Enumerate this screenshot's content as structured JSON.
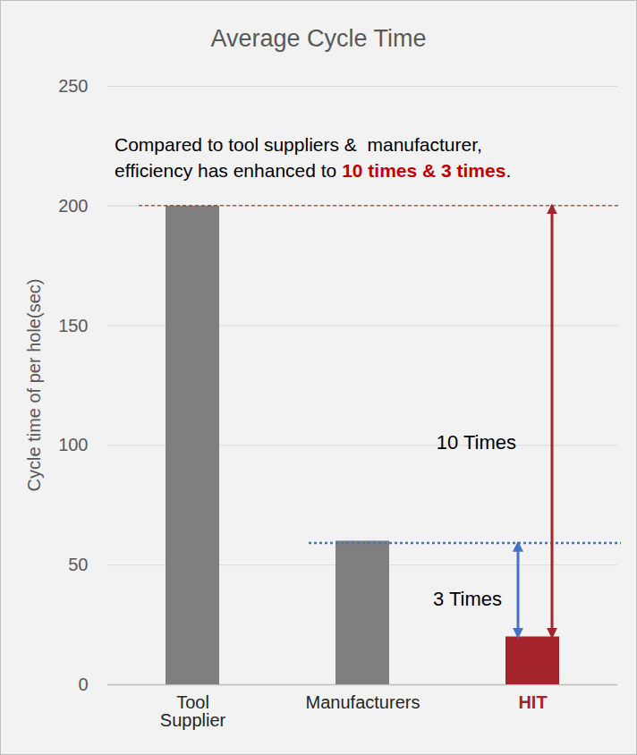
{
  "chart_data": {
    "type": "bar",
    "title": "Average Cycle Time",
    "y_label": "Cycle time of per hole(sec)",
    "categories": [
      "Tool Supplier",
      "Manufacturers",
      "HIT"
    ],
    "values": [
      200,
      60,
      20
    ],
    "colors": [
      "#7f7f7f",
      "#7f7f7f",
      "#a5232a"
    ],
    "ylim": [
      0,
      250
    ],
    "yticks": [
      0,
      50,
      100,
      150,
      200,
      250
    ],
    "grid": true,
    "annotation": {
      "lines": [
        "Compared to tool suppliers &  manufacturer,",
        "efficiency has enhanced to 10 times & 3 times."
      ],
      "highlight": "10 times & 3 times",
      "color": "#c00000"
    },
    "reference_lines": [
      {
        "value": 200,
        "color": "#c00000",
        "line_style": "dashed"
      },
      {
        "value": 59,
        "color": "#4472c4",
        "line_style": "dotted"
      }
    ],
    "arrows": [
      {
        "from": 200,
        "to": 20,
        "label": "10 Times",
        "color": "#a5232a"
      },
      {
        "from": 59,
        "to": 20,
        "label": "3 Times",
        "color": "#4472c4"
      }
    ]
  }
}
